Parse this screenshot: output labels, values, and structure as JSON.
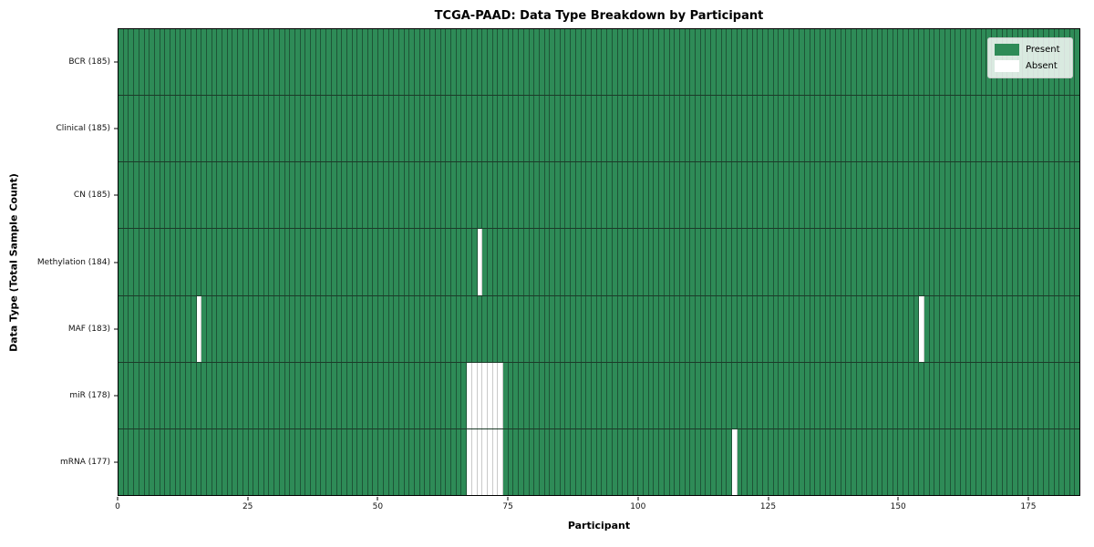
{
  "figure": {
    "title": "TCGA-PAAD: Data Type Breakdown by Participant",
    "xlabel": "Participant",
    "ylabel": "Data Type (Total Sample Count)"
  },
  "legend": {
    "items": [
      {
        "label": "Present",
        "color": "#2e8b57"
      },
      {
        "label": "Absent",
        "color": "#ffffff"
      }
    ]
  },
  "chart_data": {
    "type": "heatmap",
    "title": "TCGA-PAAD: Data Type Breakdown by Participant",
    "xlabel": "Participant",
    "ylabel": "Data Type (Total Sample Count)",
    "n_participants": 185,
    "xlim": [
      0,
      185
    ],
    "x_ticks": [
      0,
      25,
      50,
      75,
      100,
      125,
      150,
      175
    ],
    "grid": false,
    "legend_position": "upper right",
    "present_color": "#2e8b57",
    "absent_color": "#ffffff",
    "rows": [
      {
        "data_type": "BCR",
        "label": "BCR (185)",
        "present_count": 185,
        "absent_participants": []
      },
      {
        "data_type": "Clinical",
        "label": "Clinical (185)",
        "present_count": 185,
        "absent_participants": []
      },
      {
        "data_type": "CN",
        "label": "CN (185)",
        "present_count": 185,
        "absent_participants": []
      },
      {
        "data_type": "Methylation",
        "label": "Methylation (184)",
        "present_count": 184,
        "absent_participants": [
          69
        ]
      },
      {
        "data_type": "MAF",
        "label": "MAF (183)",
        "present_count": 183,
        "absent_participants": [
          15,
          154
        ]
      },
      {
        "data_type": "miR",
        "label": "miR (178)",
        "present_count": 178,
        "absent_participants": [
          67,
          68,
          69,
          70,
          71,
          72,
          73
        ]
      },
      {
        "data_type": "mRNA",
        "label": "mRNA (177)",
        "present_count": 177,
        "absent_participants": [
          67,
          68,
          69,
          70,
          71,
          72,
          73,
          118
        ]
      }
    ]
  }
}
